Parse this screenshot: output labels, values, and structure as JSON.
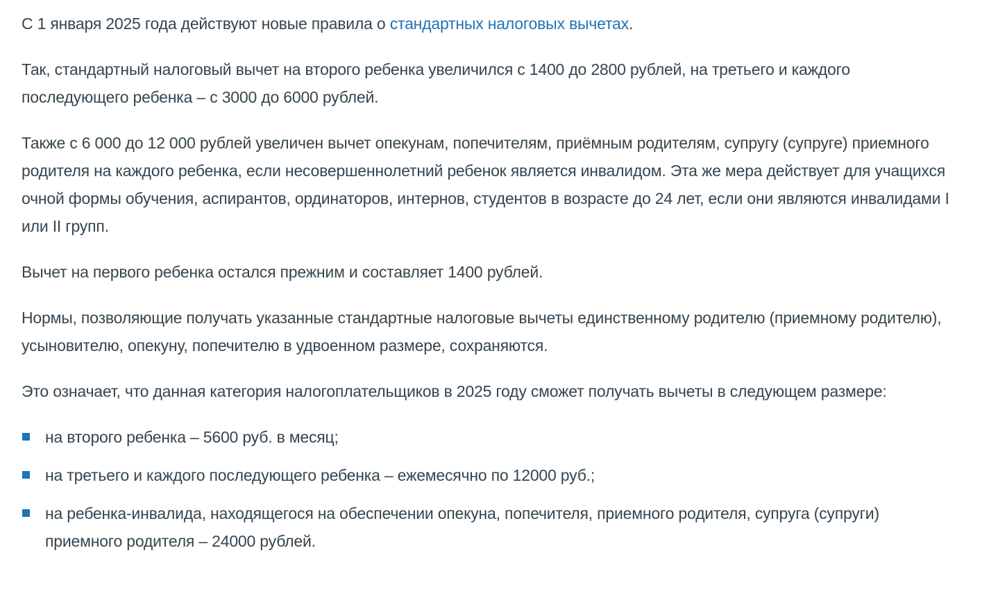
{
  "page": {
    "background_color": "#ffffff",
    "text_color": "#36454f",
    "link_color": "#2272b5",
    "bullet_color": "#1b75ba"
  },
  "paragraphs": [
    {
      "prefix": "С 1 января 2025 года действуют новые правила о ",
      "link_text": "стандартных налоговых вычетах",
      "suffix": "."
    },
    {
      "text": "Так, стандартный налоговый вычет на второго ребенка увеличился с 1400 до 2800 рублей, на третьего и каждого последующего ребенка – с 3000 до 6000 рублей."
    },
    {
      "text": "Также с 6 000 до 12 000 рублей увеличен вычет опекунам, попечителям, приёмным родителям, супругу (супруге) приемного родителя на каждого ребенка, если несовершеннолетний ребенок является инвалидом. Эта же мера действует для учащихся очной формы обучения, аспирантов, ординаторов, интернов, студентов в возрасте до 24 лет, если они являются инвалидами I или II групп."
    },
    {
      "text": "Вычет на первого ребенка остался прежним и составляет 1400 рублей."
    },
    {
      "text": "Нормы, позволяющие получать указанные стандартные налоговые вычеты единственному родителю (приемному родителю), усыновителю, опекуну, попечителю в удвоенном размере, сохраняются."
    },
    {
      "text": "Это означает, что данная категория налогоплательщиков в 2025 году сможет получать вычеты в следующем размере:"
    }
  ],
  "deduction_list": {
    "items": [
      "на второго ребенка – 5600 руб. в месяц;",
      "на третьего и каждого последующего ребенка – ежемесячно по 12000 руб.;",
      "на ребенка-инвалида, находящегося на обеспечении опекуна, попечителя, приемного родителя, супруга (супруги) приемного родителя – 24000 рублей."
    ]
  }
}
